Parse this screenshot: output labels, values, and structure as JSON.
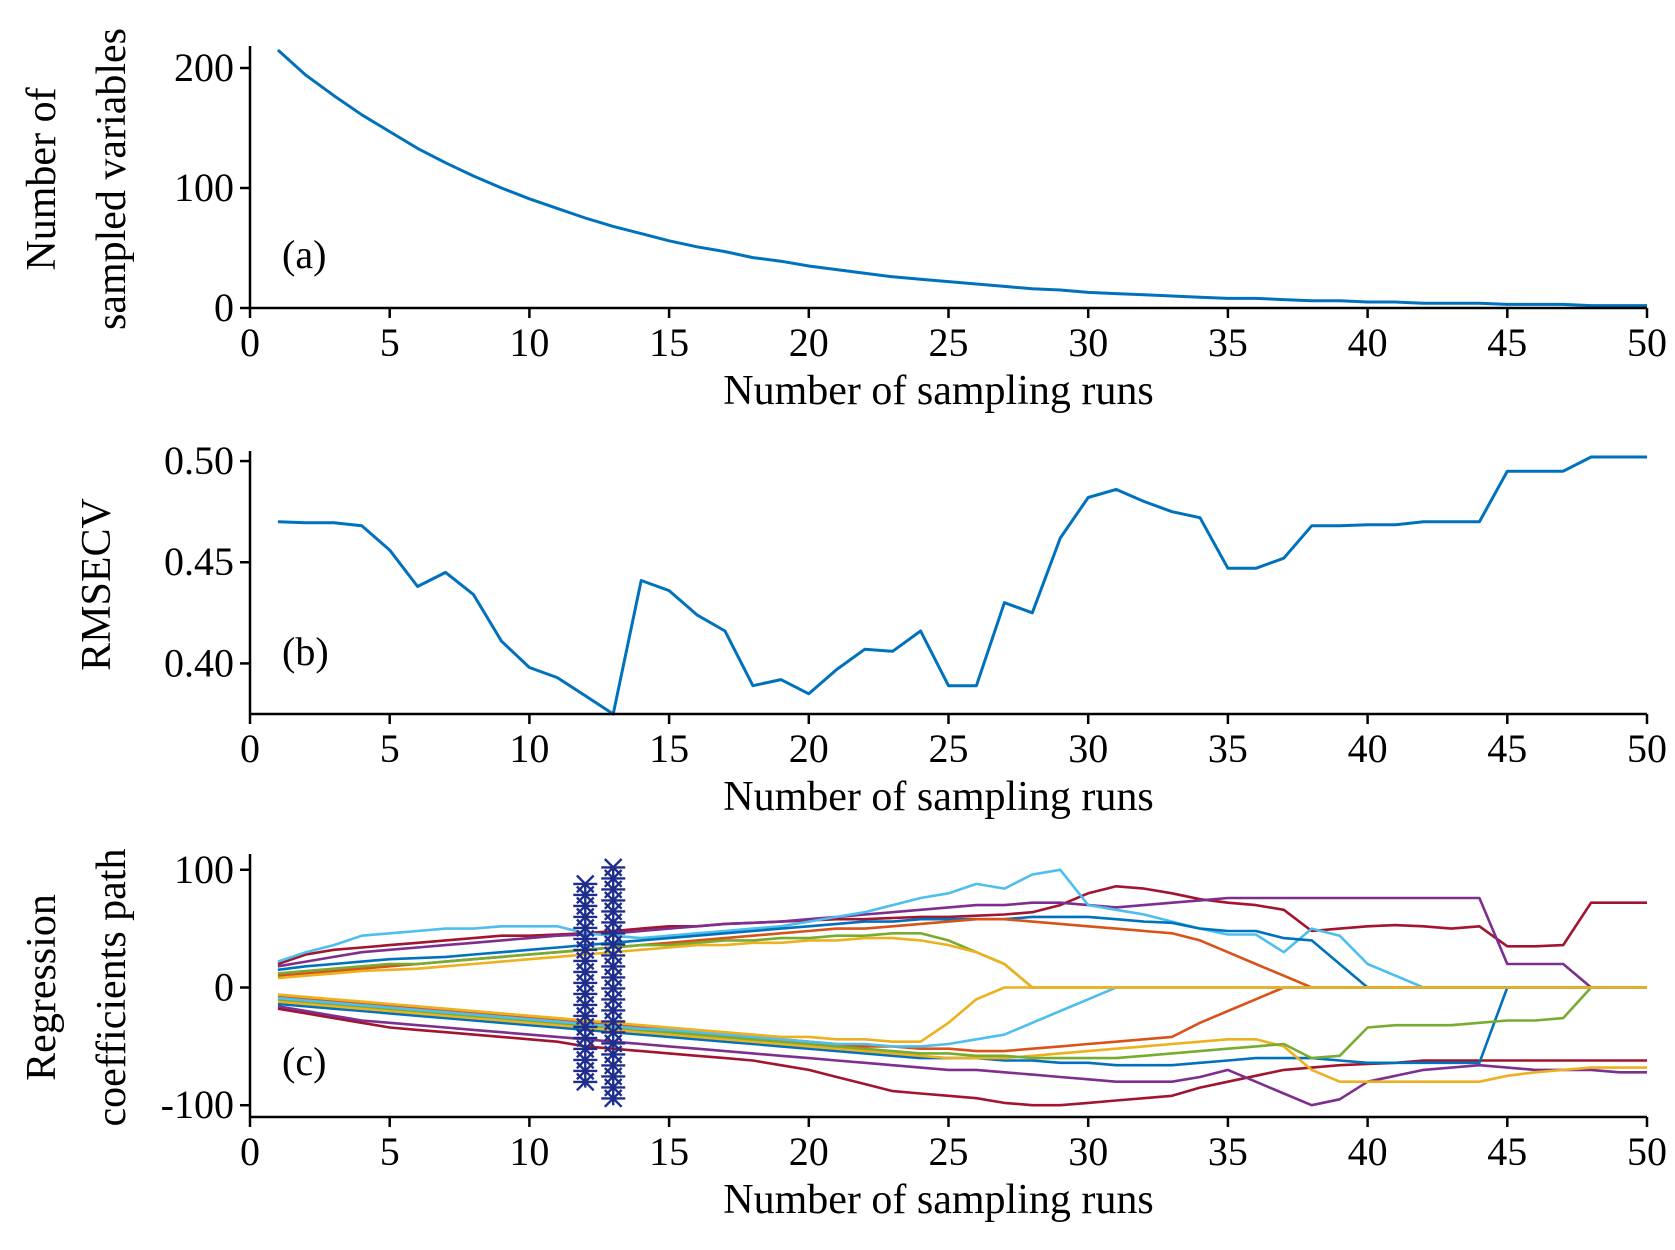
{
  "chart_data": [
    {
      "type": "line",
      "panel_label": "(a)",
      "xlabel": "Number of sampling runs",
      "ylabel_lines": [
        "Number of",
        "sampled variables"
      ],
      "xlim": [
        0,
        50
      ],
      "ylim": [
        0,
        215
      ],
      "xticks": [
        "0",
        "5",
        "10",
        "15",
        "20",
        "25",
        "30",
        "35",
        "40",
        "45",
        "50"
      ],
      "yticks": [
        "0",
        "100",
        "200"
      ],
      "ytick_values": [
        0,
        100,
        200
      ],
      "x": [
        1,
        2,
        3,
        4,
        5,
        6,
        7,
        8,
        9,
        10,
        11,
        12,
        13,
        14,
        15,
        16,
        17,
        18,
        19,
        20,
        21,
        22,
        23,
        24,
        25,
        26,
        27,
        28,
        29,
        30,
        31,
        32,
        33,
        34,
        35,
        36,
        37,
        38,
        39,
        40,
        41,
        42,
        43,
        44,
        45,
        46,
        47,
        48,
        49,
        50
      ],
      "series": [
        {
          "color": "#0072BD",
          "values": [
            215,
            194,
            177,
            161,
            147,
            133,
            121,
            110,
            100,
            91,
            83,
            75,
            68,
            62,
            56,
            51,
            47,
            42,
            39,
            35,
            32,
            29,
            26,
            24,
            22,
            20,
            18,
            16,
            15,
            13,
            12,
            11,
            10,
            9,
            8,
            8,
            7,
            6,
            6,
            5,
            5,
            4,
            4,
            4,
            3,
            3,
            3,
            2,
            2,
            2
          ]
        }
      ]
    },
    {
      "type": "line",
      "panel_label": "(b)",
      "xlabel": "Number of sampling runs",
      "ylabel": "RMSECV",
      "xlim": [
        0,
        50
      ],
      "ylim": [
        0.375,
        0.503
      ],
      "xticks": [
        "0",
        "5",
        "10",
        "15",
        "20",
        "25",
        "30",
        "35",
        "40",
        "45",
        "50"
      ],
      "yticks": [
        "0.40",
        "0.45",
        "0.50"
      ],
      "ytick_values": [
        0.4,
        0.45,
        0.5
      ],
      "x": [
        1,
        2,
        3,
        4,
        5,
        6,
        7,
        8,
        9,
        10,
        11,
        12,
        13,
        14,
        15,
        16,
        17,
        18,
        19,
        20,
        21,
        22,
        23,
        24,
        25,
        26,
        27,
        28,
        29,
        30,
        31,
        32,
        33,
        34,
        35,
        36,
        37,
        38,
        39,
        40,
        41,
        42,
        43,
        44,
        45,
        46,
        47,
        48,
        49,
        50
      ],
      "series": [
        {
          "color": "#0072BD",
          "values": [
            0.47,
            0.4695,
            0.4695,
            0.468,
            0.456,
            0.438,
            0.445,
            0.434,
            0.411,
            0.398,
            0.393,
            0.384,
            0.375,
            0.441,
            0.436,
            0.424,
            0.416,
            0.389,
            0.392,
            0.385,
            0.397,
            0.407,
            0.406,
            0.416,
            0.389,
            0.389,
            0.43,
            0.425,
            0.462,
            0.482,
            0.486,
            0.48,
            0.475,
            0.472,
            0.447,
            0.447,
            0.452,
            0.468,
            0.468,
            0.4685,
            0.4685,
            0.47,
            0.47,
            0.47,
            0.495,
            0.495,
            0.495,
            0.502,
            0.502,
            0.502
          ]
        }
      ]
    },
    {
      "type": "line",
      "panel_label": "(c)",
      "xlabel": "Number of sampling runs",
      "ylabel_lines": [
        "Regression",
        "coefficients path"
      ],
      "xlim": [
        0,
        50
      ],
      "ylim": [
        -110,
        110
      ],
      "xticks": [
        "0",
        "5",
        "10",
        "15",
        "20",
        "25",
        "30",
        "35",
        "40",
        "45",
        "50"
      ],
      "yticks": [
        "-100",
        "0",
        "100"
      ],
      "ytick_values": [
        -100,
        0,
        100
      ],
      "marker_lines": [
        {
          "x": 12,
          "y_from": -85,
          "y_to": 88,
          "marker": "asterisk",
          "color": "#1F2E8C"
        },
        {
          "x": 13,
          "y_from": -100,
          "y_to": 102,
          "marker": "asterisk",
          "color": "#1F2E8C"
        }
      ],
      "x": [
        1,
        2,
        3,
        4,
        5,
        6,
        7,
        8,
        9,
        10,
        11,
        12,
        13,
        14,
        15,
        16,
        17,
        18,
        19,
        20,
        21,
        22,
        23,
        24,
        25,
        26,
        27,
        28,
        29,
        30,
        31,
        32,
        33,
        34,
        35,
        36,
        37,
        38,
        39,
        40,
        41,
        42,
        43,
        44,
        45,
        46,
        47,
        48,
        49,
        50
      ],
      "series": [
        {
          "color": "#A2142F",
          "values": [
            20,
            28,
            32,
            34,
            36,
            38,
            40,
            42,
            44,
            44,
            45,
            46,
            48,
            50,
            52,
            52,
            54,
            55,
            56,
            57,
            58,
            58,
            59,
            60,
            60,
            61,
            62,
            64,
            70,
            80,
            86,
            84,
            80,
            75,
            72,
            70,
            66,
            48,
            50,
            52,
            53,
            52,
            50,
            52,
            35,
            35,
            36,
            72,
            72,
            72
          ]
        },
        {
          "color": "#7E2F8E",
          "values": [
            18,
            22,
            26,
            30,
            32,
            34,
            36,
            38,
            40,
            42,
            44,
            45,
            46,
            48,
            50,
            52,
            54,
            55,
            56,
            58,
            60,
            62,
            64,
            66,
            68,
            70,
            70,
            72,
            72,
            70,
            68,
            70,
            72,
            74,
            76,
            76,
            76,
            76,
            76,
            76,
            76,
            76,
            76,
            76,
            20,
            20,
            20,
            0,
            0,
            0
          ]
        },
        {
          "color": "#4DBEEE",
          "values": [
            22,
            30,
            36,
            44,
            46,
            48,
            50,
            50,
            52,
            52,
            52,
            46,
            44,
            42,
            44,
            46,
            48,
            50,
            52,
            56,
            60,
            64,
            70,
            76,
            80,
            88,
            84,
            96,
            100,
            70,
            66,
            62,
            56,
            50,
            45,
            45,
            30,
            50,
            44,
            20,
            10,
            0,
            0,
            0,
            0,
            0,
            0,
            0,
            0,
            0
          ]
        },
        {
          "color": "#0072BD",
          "values": [
            15,
            18,
            20,
            22,
            24,
            25,
            26,
            28,
            30,
            32,
            34,
            36,
            38,
            40,
            42,
            44,
            46,
            48,
            50,
            52,
            54,
            56,
            56,
            58,
            58,
            58,
            58,
            60,
            60,
            60,
            58,
            56,
            55,
            50,
            48,
            48,
            42,
            40,
            20,
            0,
            0,
            0,
            0,
            0,
            0,
            0,
            0,
            0,
            0,
            0
          ]
        },
        {
          "color": "#D95319",
          "values": [
            10,
            12,
            14,
            16,
            18,
            20,
            22,
            24,
            26,
            28,
            30,
            32,
            34,
            36,
            38,
            40,
            42,
            44,
            46,
            48,
            50,
            50,
            52,
            54,
            56,
            58,
            58,
            56,
            54,
            52,
            50,
            48,
            46,
            40,
            30,
            20,
            10,
            0,
            0,
            0,
            0,
            0,
            0,
            0,
            0,
            0,
            0,
            0,
            0,
            0
          ]
        },
        {
          "color": "#77AC30",
          "values": [
            12,
            14,
            16,
            18,
            20,
            20,
            22,
            24,
            26,
            28,
            30,
            32,
            34,
            36,
            36,
            38,
            40,
            40,
            42,
            42,
            44,
            44,
            46,
            46,
            40,
            30,
            20,
            0,
            0,
            0,
            0,
            0,
            0,
            0,
            0,
            0,
            0,
            0,
            0,
            0,
            0,
            0,
            0,
            0,
            0,
            0,
            0,
            0,
            0,
            0
          ]
        },
        {
          "color": "#EDB120",
          "values": [
            8,
            10,
            12,
            14,
            15,
            16,
            18,
            20,
            22,
            24,
            26,
            28,
            30,
            32,
            34,
            36,
            36,
            38,
            38,
            40,
            40,
            42,
            42,
            40,
            36,
            30,
            20,
            0,
            0,
            0,
            0,
            0,
            0,
            0,
            0,
            0,
            0,
            0,
            0,
            0,
            0,
            0,
            0,
            0,
            0,
            0,
            0,
            0,
            0,
            0
          ]
        },
        {
          "color": "#A2142F",
          "values": [
            -18,
            -22,
            -26,
            -30,
            -34,
            -36,
            -38,
            -40,
            -42,
            -44,
            -46,
            -50,
            -52,
            -54,
            -56,
            -58,
            -60,
            -62,
            -66,
            -70,
            -76,
            -82,
            -88,
            -90,
            -92,
            -94,
            -98,
            -100,
            -100,
            -98,
            -96,
            -94,
            -92,
            -85,
            -80,
            -75,
            -70,
            -68,
            -66,
            -65,
            -64,
            -62,
            -62,
            -62,
            -62,
            -62,
            -62,
            -62,
            -62,
            -62
          ]
        },
        {
          "color": "#7E2F8E",
          "values": [
            -16,
            -20,
            -24,
            -28,
            -30,
            -32,
            -34,
            -36,
            -38,
            -40,
            -42,
            -44,
            -46,
            -48,
            -50,
            -52,
            -54,
            -56,
            -58,
            -60,
            -62,
            -64,
            -66,
            -68,
            -70,
            -70,
            -72,
            -74,
            -76,
            -78,
            -80,
            -80,
            -80,
            -76,
            -70,
            -80,
            -90,
            -100,
            -95,
            -80,
            -75,
            -70,
            -68,
            -66,
            -68,
            -70,
            -70,
            -70,
            -72,
            -72
          ]
        },
        {
          "color": "#0072BD",
          "values": [
            -14,
            -16,
            -18,
            -20,
            -22,
            -24,
            -26,
            -28,
            -30,
            -32,
            -34,
            -36,
            -38,
            -40,
            -42,
            -44,
            -46,
            -48,
            -50,
            -52,
            -54,
            -56,
            -58,
            -60,
            -60,
            -60,
            -62,
            -62,
            -64,
            -64,
            -66,
            -66,
            -66,
            -64,
            -62,
            -60,
            -60,
            -60,
            -62,
            -64,
            -64,
            -64,
            -64,
            -64,
            0,
            0,
            0,
            0,
            0,
            0
          ]
        },
        {
          "color": "#EDB120",
          "values": [
            -12,
            -14,
            -16,
            -18,
            -20,
            -22,
            -24,
            -26,
            -28,
            -30,
            -32,
            -34,
            -36,
            -38,
            -40,
            -42,
            -44,
            -46,
            -48,
            -50,
            -52,
            -54,
            -56,
            -58,
            -60,
            -60,
            -60,
            -58,
            -56,
            -54,
            -52,
            -50,
            -48,
            -46,
            -44,
            -44,
            -50,
            -70,
            -80,
            -80,
            -80,
            -80,
            -80,
            -80,
            -75,
            -72,
            -70,
            -68,
            -68,
            -68
          ]
        },
        {
          "color": "#77AC30",
          "values": [
            -10,
            -12,
            -14,
            -16,
            -18,
            -20,
            -22,
            -24,
            -26,
            -28,
            -30,
            -32,
            -34,
            -36,
            -38,
            -40,
            -42,
            -44,
            -46,
            -48,
            -50,
            -52,
            -54,
            -56,
            -56,
            -58,
            -58,
            -60,
            -60,
            -60,
            -60,
            -58,
            -56,
            -54,
            -52,
            -50,
            -48,
            -60,
            -58,
            -34,
            -32,
            -32,
            -32,
            -30,
            -28,
            -28,
            -26,
            0,
            0,
            0
          ]
        },
        {
          "color": "#D95319",
          "values": [
            -8,
            -10,
            -12,
            -14,
            -16,
            -18,
            -20,
            -22,
            -24,
            -26,
            -28,
            -30,
            -32,
            -34,
            -36,
            -38,
            -40,
            -42,
            -44,
            -46,
            -48,
            -50,
            -50,
            -52,
            -52,
            -54,
            -54,
            -52,
            -50,
            -48,
            -46,
            -44,
            -42,
            -30,
            -20,
            -10,
            0,
            0,
            0,
            0,
            0,
            0,
            0,
            0,
            0,
            0,
            0,
            0,
            0,
            0
          ]
        },
        {
          "color": "#4DBEEE",
          "values": [
            -9,
            -11,
            -13,
            -15,
            -17,
            -19,
            -21,
            -23,
            -25,
            -27,
            -29,
            -31,
            -33,
            -35,
            -36,
            -38,
            -40,
            -42,
            -44,
            -46,
            -48,
            -48,
            -50,
            -50,
            -48,
            -44,
            -40,
            -30,
            -20,
            -10,
            0,
            0,
            0,
            0,
            0,
            0,
            0,
            0,
            0,
            0,
            0,
            0,
            0,
            0,
            0,
            0,
            0,
            0,
            0,
            0
          ]
        },
        {
          "color": "#EDB120",
          "values": [
            -6,
            -8,
            -10,
            -12,
            -14,
            -16,
            -18,
            -20,
            -22,
            -24,
            -26,
            -28,
            -30,
            -32,
            -34,
            -36,
            -38,
            -40,
            -42,
            -42,
            -44,
            -44,
            -46,
            -46,
            -30,
            -10,
            0,
            0,
            0,
            0,
            0,
            0,
            0,
            0,
            0,
            0,
            0,
            0,
            0,
            0,
            0,
            0,
            0,
            0,
            0,
            0,
            0,
            0,
            0,
            0
          ]
        }
      ]
    }
  ]
}
